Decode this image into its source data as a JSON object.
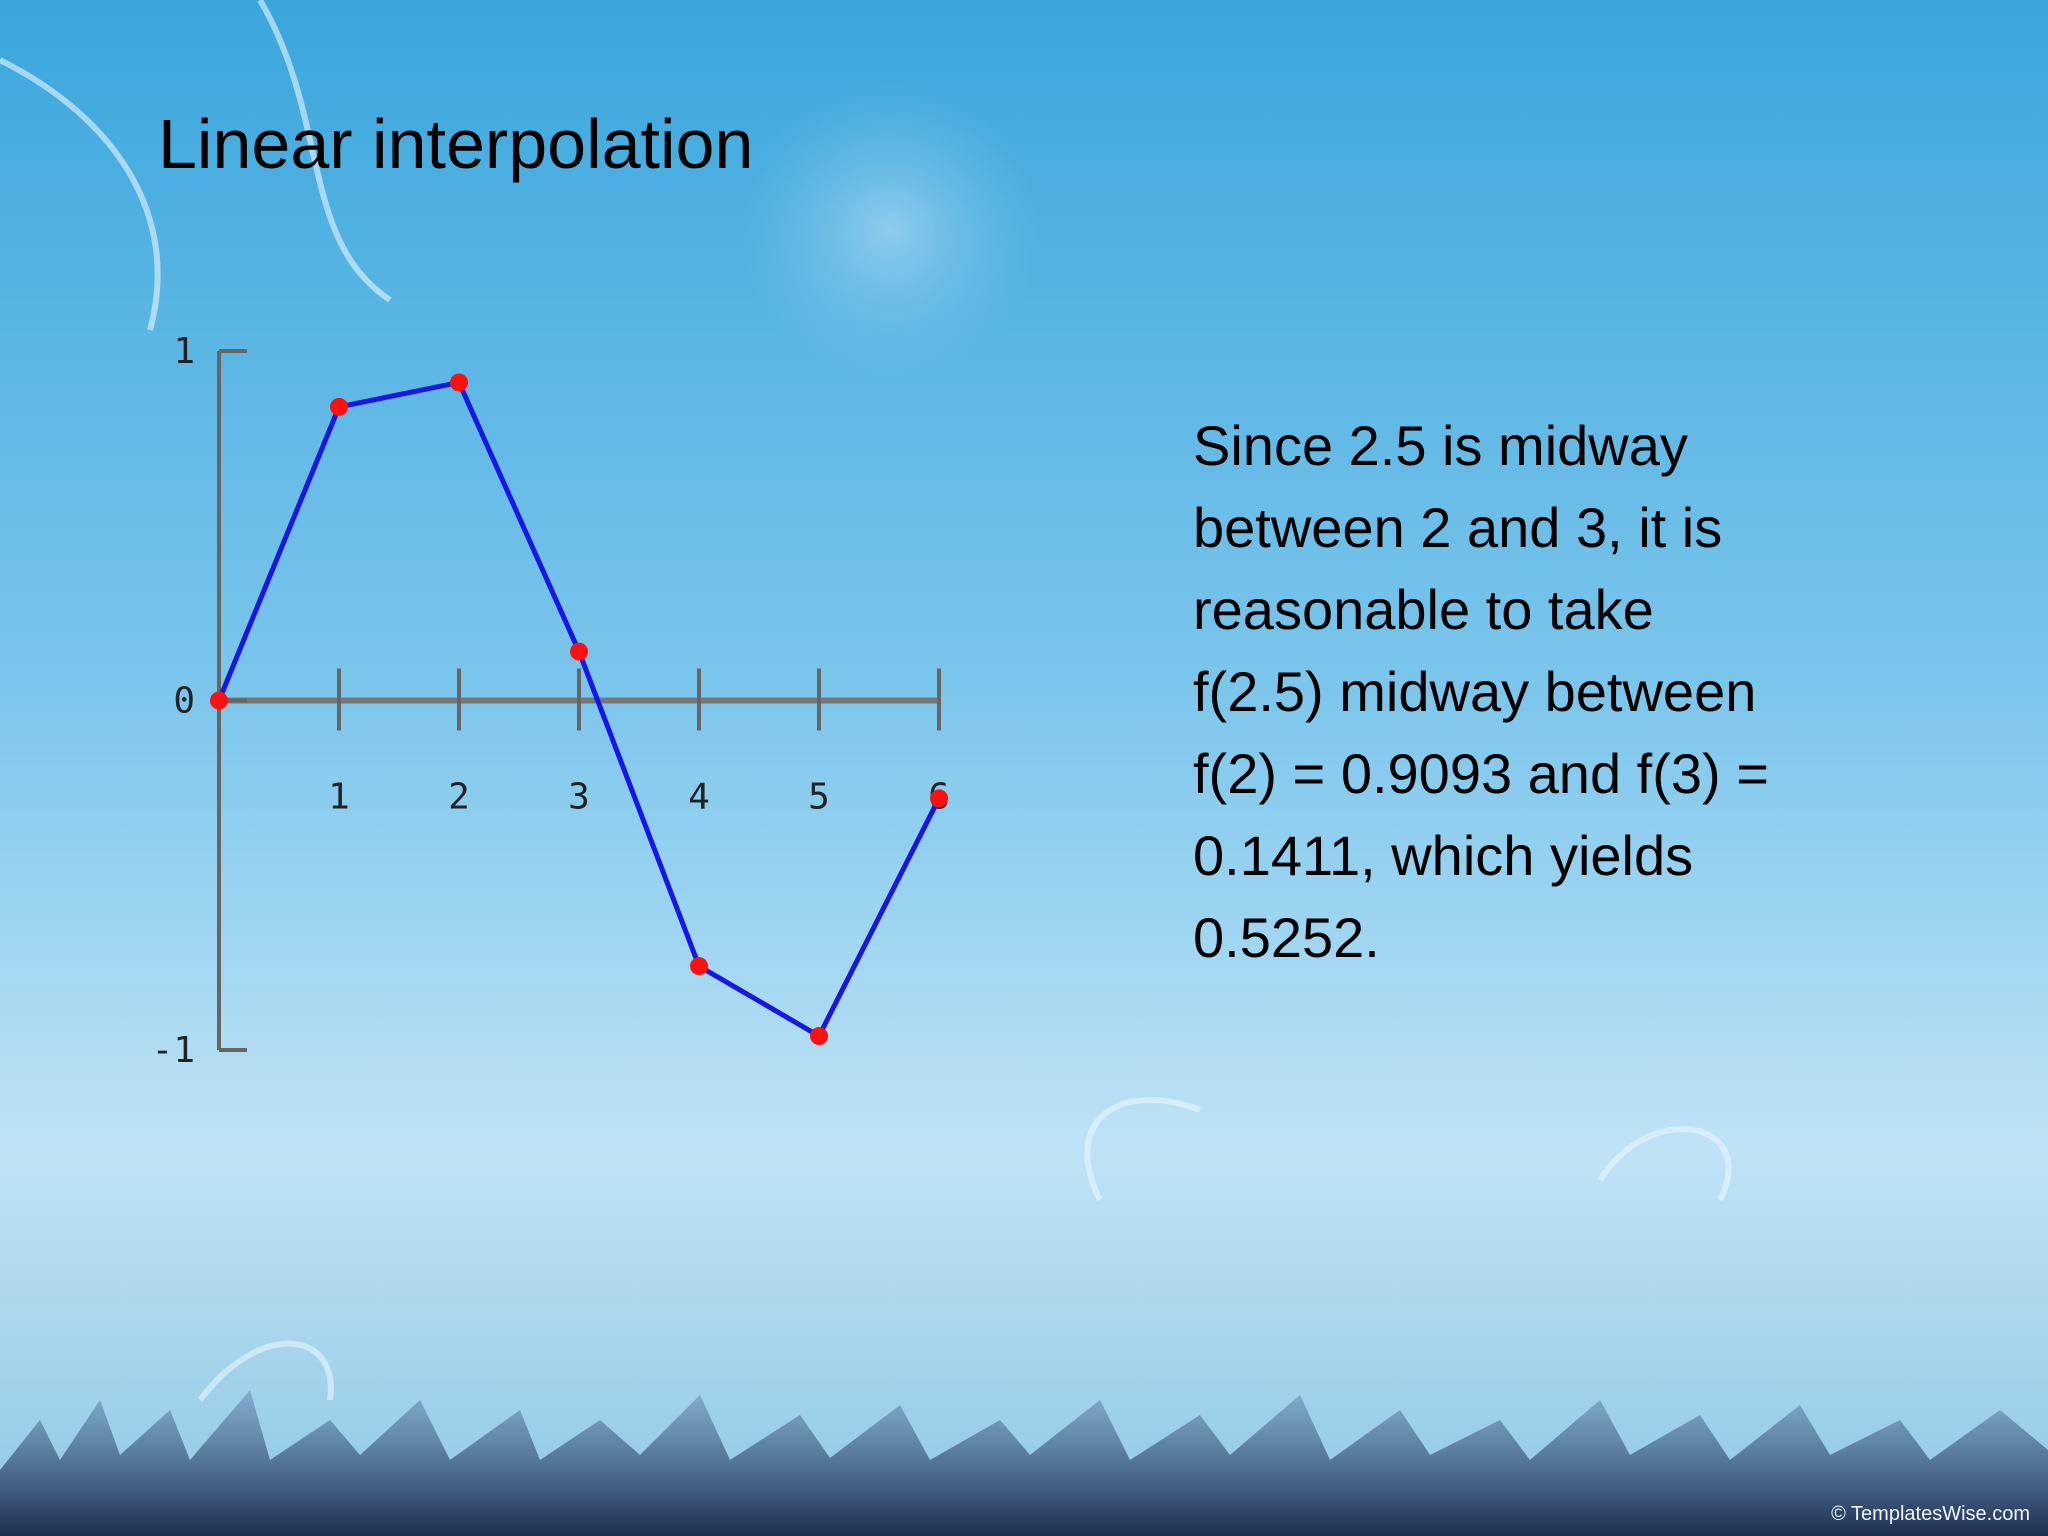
{
  "slide": {
    "title": "Linear interpolation",
    "body_lines": [
      "Since 2.5 is midway",
      "between 2 and 3, it is",
      "reasonable to take",
      "f(2.5) midway between",
      "f(2) = 0.9093 and f(3) =",
      "0.1411, which yields",
      "0.5252."
    ],
    "footer": "© TemplatesWise.com"
  },
  "chart_data": {
    "type": "line",
    "x": [
      0,
      1,
      2,
      3,
      4,
      5,
      6
    ],
    "series": [
      {
        "color": "#1616e8",
        "marker_color": "#ff1010",
        "values": [
          0,
          0.84,
          0.91,
          0.14,
          -0.76,
          -0.96,
          -0.28
        ]
      }
    ],
    "xlim": [
      0,
      6
    ],
    "ylim": [
      -1,
      1
    ],
    "xticks": [
      1,
      2,
      3,
      4,
      5,
      6
    ],
    "yticks": [
      -1,
      0,
      1
    ]
  }
}
